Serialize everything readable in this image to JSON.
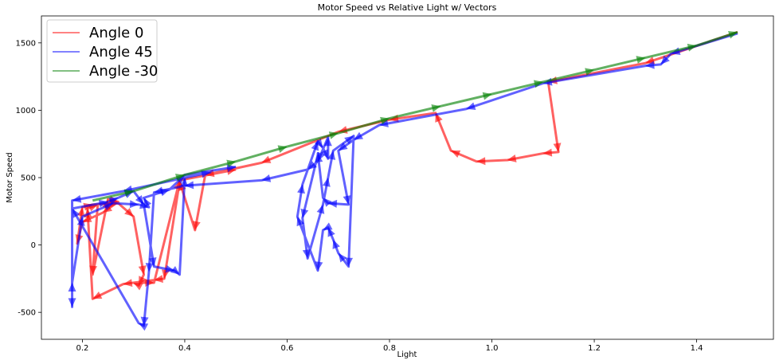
{
  "chart_data": {
    "type": "line",
    "title": "Motor Speed vs Relative Light w/ Vectors",
    "xlabel": "Light",
    "ylabel": "Motor Speed",
    "xlim": [
      0.12,
      1.55
    ],
    "ylim": [
      -700,
      1700
    ],
    "xticks": [
      0.2,
      0.4,
      0.6,
      0.8,
      1.0,
      1.2,
      1.4
    ],
    "xtick_labels": [
      "0.2",
      "0.4",
      "0.6",
      "0.8",
      "1.0",
      "1.2",
      "1.4"
    ],
    "yticks": [
      -500,
      0,
      500,
      1000,
      1500
    ],
    "ytick_labels": [
      "-500",
      "0",
      "500",
      "1000",
      "1500"
    ],
    "grid": false,
    "legend_position": "top-left",
    "series": [
      {
        "name": "Angle 0",
        "color": "#ff0000",
        "x": [
          1.48,
          1.3,
          1.11,
          1.13,
          1.1,
          1.03,
          0.97,
          0.92,
          0.89,
          0.8,
          0.7,
          0.55,
          0.44,
          0.42,
          0.39,
          0.36,
          0.34,
          0.28,
          0.22,
          0.21,
          0.23,
          0.22,
          0.25,
          0.27,
          0.24,
          0.2,
          0.19,
          0.2,
          0.22,
          0.27,
          0.3,
          0.32,
          0.31,
          0.3,
          0.34,
          0.39,
          0.5
        ],
        "y": [
          1580,
          1350,
          1210,
          690,
          680,
          630,
          620,
          700,
          980,
          930,
          840,
          610,
          520,
          110,
          470,
          -250,
          -260,
          -290,
          -400,
          270,
          300,
          -220,
          340,
          320,
          240,
          170,
          10,
          280,
          300,
          310,
          210,
          -220,
          -300,
          -280,
          -280,
          480,
          560
        ]
      },
      {
        "name": "Angle 45",
        "color": "#0000ff",
        "x": [
          1.48,
          1.35,
          1.33,
          1.3,
          1.1,
          0.95,
          0.78,
          0.73,
          0.7,
          0.72,
          0.68,
          0.67,
          0.66,
          0.66,
          0.63,
          0.64,
          0.67,
          0.68,
          0.69,
          0.73,
          0.72,
          0.7,
          0.69,
          0.68,
          0.67,
          0.66,
          0.62,
          0.63,
          0.66,
          0.67,
          0.68,
          0.68,
          0.66,
          0.64,
          0.55,
          0.4,
          0.34,
          0.33,
          0.32,
          0.31,
          0.18,
          0.25,
          0.27,
          0.3,
          0.32,
          0.34,
          0.38,
          0.39,
          0.4,
          0.45,
          0.28,
          0.18,
          0.18,
          0.18,
          0.2,
          0.26,
          0.31,
          0.33,
          0.32,
          0.37,
          0.4,
          0.5
        ],
        "y": [
          1570,
          1420,
          1340,
          1330,
          1200,
          1010,
          890,
          780,
          700,
          300,
          310,
          350,
          680,
          670,
          200,
          -100,
          300,
          500,
          700,
          810,
          -160,
          -60,
          40,
          130,
          110,
          -190,
          210,
          450,
          770,
          720,
          640,
          800,
          620,
          560,
          480,
          440,
          390,
          -200,
          -600,
          -580,
          270,
          320,
          350,
          400,
          300,
          -160,
          -190,
          -220,
          500,
          540,
          400,
          330,
          -460,
          -280,
          210,
          310,
          300,
          280,
          350,
          410,
          520,
          580
        ]
      },
      {
        "name": "Angle -30",
        "color": "#008000",
        "x": [
          0.22,
          0.3,
          0.4,
          0.5,
          0.6,
          0.7,
          0.8,
          0.9,
          1.0,
          1.1,
          1.2,
          1.3,
          1.4,
          1.48
        ],
        "y": [
          330,
          400,
          520,
          620,
          730,
          830,
          940,
          1030,
          1120,
          1210,
          1300,
          1390,
          1480,
          1580
        ]
      }
    ]
  }
}
